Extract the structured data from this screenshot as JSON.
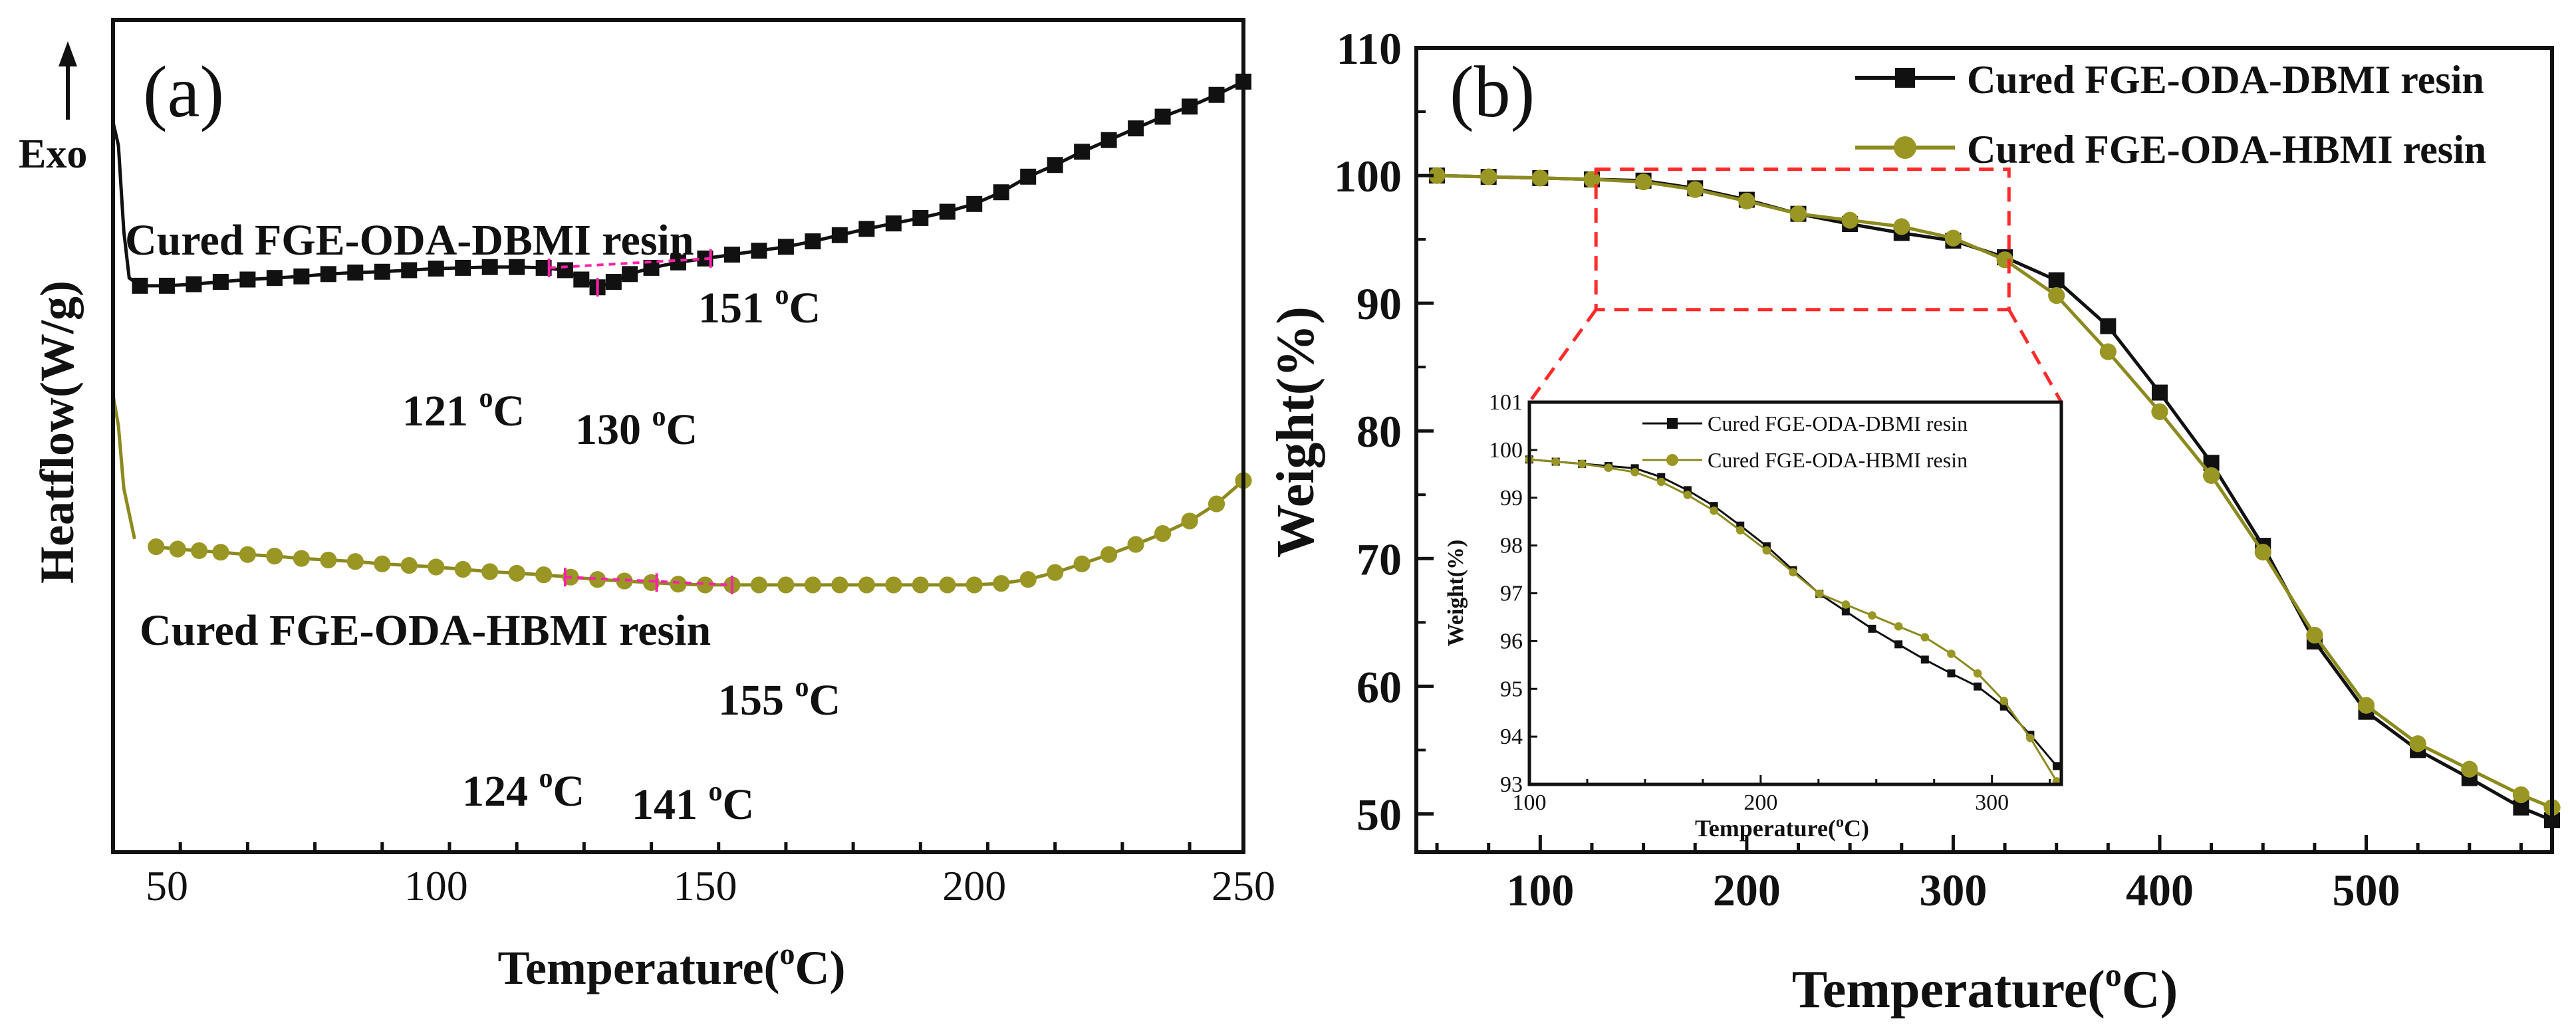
{
  "colors": {
    "black": "#111111",
    "olive": "#8c8a1e",
    "marker_olive": "#9a9624",
    "accent": "#ff2a2a",
    "annotation": "#ff22aa"
  },
  "chart_data": [
    {
      "id": "a",
      "type": "line",
      "panel_label": "(a)",
      "exo_label": "Exo",
      "xlabel": "Temperature(",
      "xlabel_sup": "o",
      "xlabel_end": "C)",
      "ylabel": "Heatflow(W/g)",
      "xlim": [
        40,
        250
      ],
      "ylim": [
        0,
        10
      ],
      "x_ticks": [
        50,
        100,
        150,
        200,
        250
      ],
      "show_y_ticks": false,
      "series": [
        {
          "name": "Cured FGE-ODA-DBMI resin",
          "color_key": "black",
          "marker": "square",
          "points": [
            [
              40,
              9.2
            ],
            [
              41,
              8.9
            ],
            [
              42,
              7.8
            ],
            [
              43,
              7.2
            ],
            [
              45,
              7.1
            ],
            [
              50,
              7.1
            ],
            [
              55,
              7.12
            ],
            [
              60,
              7.15
            ],
            [
              65,
              7.18
            ],
            [
              70,
              7.2
            ],
            [
              75,
              7.22
            ],
            [
              80,
              7.25
            ],
            [
              85,
              7.27
            ],
            [
              90,
              7.28
            ],
            [
              95,
              7.3
            ],
            [
              100,
              7.32
            ],
            [
              105,
              7.33
            ],
            [
              110,
              7.34
            ],
            [
              115,
              7.34
            ],
            [
              120,
              7.33
            ],
            [
              124,
              7.3
            ],
            [
              127,
              7.18
            ],
            [
              130,
              7.08
            ],
            [
              133,
              7.15
            ],
            [
              136,
              7.25
            ],
            [
              140,
              7.33
            ],
            [
              145,
              7.4
            ],
            [
              150,
              7.45
            ],
            [
              155,
              7.5
            ],
            [
              160,
              7.55
            ],
            [
              165,
              7.6
            ],
            [
              170,
              7.67
            ],
            [
              175,
              7.75
            ],
            [
              180,
              7.83
            ],
            [
              185,
              7.9
            ],
            [
              190,
              7.97
            ],
            [
              195,
              8.05
            ],
            [
              200,
              8.15
            ],
            [
              205,
              8.3
            ],
            [
              210,
              8.5
            ],
            [
              215,
              8.65
            ],
            [
              220,
              8.82
            ],
            [
              225,
              8.97
            ],
            [
              230,
              9.12
            ],
            [
              235,
              9.27
            ],
            [
              240,
              9.4
            ],
            [
              245,
              9.55
            ],
            [
              250,
              9.72
            ]
          ]
        },
        {
          "name": "Cured FGE-ODA-HBMI resin",
          "color_key": "olive",
          "marker": "circle",
          "points": [
            [
              40,
              5.7
            ],
            [
              41,
              5.3
            ],
            [
              42,
              4.5
            ],
            [
              44,
              3.85
            ],
            [
              48,
              3.75
            ],
            [
              52,
              3.72
            ],
            [
              56,
              3.7
            ],
            [
              60,
              3.68
            ],
            [
              65,
              3.65
            ],
            [
              70,
              3.63
            ],
            [
              75,
              3.6
            ],
            [
              80,
              3.58
            ],
            [
              85,
              3.56
            ],
            [
              90,
              3.53
            ],
            [
              95,
              3.51
            ],
            [
              100,
              3.49
            ],
            [
              105,
              3.46
            ],
            [
              110,
              3.43
            ],
            [
              115,
              3.41
            ],
            [
              120,
              3.39
            ],
            [
              125,
              3.36
            ],
            [
              130,
              3.33
            ],
            [
              135,
              3.31
            ],
            [
              140,
              3.29
            ],
            [
              145,
              3.27
            ],
            [
              150,
              3.26
            ],
            [
              155,
              3.26
            ],
            [
              160,
              3.26
            ],
            [
              165,
              3.26
            ],
            [
              170,
              3.26
            ],
            [
              175,
              3.26
            ],
            [
              180,
              3.26
            ],
            [
              185,
              3.26
            ],
            [
              190,
              3.26
            ],
            [
              195,
              3.26
            ],
            [
              200,
              3.26
            ],
            [
              205,
              3.28
            ],
            [
              210,
              3.33
            ],
            [
              215,
              3.42
            ],
            [
              220,
              3.53
            ],
            [
              225,
              3.65
            ],
            [
              230,
              3.78
            ],
            [
              235,
              3.92
            ],
            [
              240,
              4.08
            ],
            [
              245,
              4.3
            ],
            [
              250,
              4.6
            ]
          ]
        }
      ],
      "curve_labels": [
        {
          "text": "Cured FGE-ODA-DBMI resin"
        },
        {
          "text": "Cured FGE-ODA-HBMI resin"
        }
      ],
      "annotations": [
        {
          "text": "151",
          "sup": "o",
          "unit": "C",
          "x": 151,
          "y": 7.45
        },
        {
          "text": "121",
          "sup": "o",
          "unit": "C",
          "x": 121,
          "y": 7.33
        },
        {
          "text": "130",
          "sup": "o",
          "unit": "C",
          "x": 130,
          "y": 7.08
        },
        {
          "text": "155",
          "sup": "o",
          "unit": "C",
          "x": 155,
          "y": 3.26
        },
        {
          "text": "124",
          "sup": "o",
          "unit": "C",
          "x": 124,
          "y": 3.36
        },
        {
          "text": "141",
          "sup": "o",
          "unit": "C",
          "x": 141,
          "y": 3.29
        }
      ]
    },
    {
      "id": "b",
      "type": "line",
      "panel_label": "(b)",
      "xlabel": "Temperature(",
      "xlabel_sup": "o",
      "xlabel_end": "C)",
      "ylabel": "Weight(%)",
      "xlim": [
        40,
        590
      ],
      "ylim": [
        47,
        110
      ],
      "x_ticks": [
        100,
        200,
        300,
        400,
        500
      ],
      "y_ticks": [
        50,
        60,
        70,
        80,
        90,
        100,
        110
      ],
      "legend_position": "top-right",
      "series": [
        {
          "name": "Cured FGE-ODA-DBMI resin",
          "color_key": "black",
          "marker": "square",
          "points": [
            [
              50,
              100
            ],
            [
              75,
              99.9
            ],
            [
              100,
              99.8
            ],
            [
              125,
              99.7
            ],
            [
              150,
              99.6
            ],
            [
              175,
              99
            ],
            [
              200,
              98.1
            ],
            [
              225,
              97
            ],
            [
              250,
              96.2
            ],
            [
              275,
              95.5
            ],
            [
              300,
              94.9
            ],
            [
              325,
              93.6
            ],
            [
              350,
              91.8
            ],
            [
              375,
              88.2
            ],
            [
              400,
              83
            ],
            [
              425,
              77.5
            ],
            [
              450,
              71
            ],
            [
              475,
              63.5
            ],
            [
              500,
              58
            ],
            [
              525,
              55
            ],
            [
              550,
              52.8
            ],
            [
              575,
              50.5
            ],
            [
              590,
              49.5
            ]
          ]
        },
        {
          "name": "Cured FGE-ODA-HBMI resin",
          "color_key": "olive",
          "marker": "circle",
          "points": [
            [
              50,
              100
            ],
            [
              75,
              99.9
            ],
            [
              100,
              99.8
            ],
            [
              125,
              99.7
            ],
            [
              150,
              99.5
            ],
            [
              175,
              98.9
            ],
            [
              200,
              98
            ],
            [
              225,
              97
            ],
            [
              250,
              96.5
            ],
            [
              275,
              96
            ],
            [
              300,
              95.1
            ],
            [
              325,
              93.4
            ],
            [
              350,
              90.6
            ],
            [
              375,
              86.2
            ],
            [
              400,
              81.5
            ],
            [
              425,
              76.5
            ],
            [
              450,
              70.5
            ],
            [
              475,
              64
            ],
            [
              500,
              58.5
            ],
            [
              525,
              55.5
            ],
            [
              550,
              53.5
            ],
            [
              575,
              51.5
            ],
            [
              590,
              50.5
            ]
          ]
        }
      ],
      "highlight_box": {
        "x": [
          127,
          327
        ],
        "y": [
          89.5,
          100.5
        ]
      },
      "inset": {
        "xlabel": "Temperature(",
        "xlabel_sup": "o",
        "xlabel_end": "C)",
        "ylabel": "Weight(%)",
        "xlim": [
          100,
          330
        ],
        "ylim": [
          93,
          101
        ],
        "x_ticks": [
          100,
          200,
          300
        ],
        "y_ticks": [
          93,
          94,
          95,
          96,
          97,
          98,
          99,
          100,
          101
        ],
        "legend": [
          "Cured FGE-ODA-DBMI resin",
          "Cured FGE-ODA-HBMI resin"
        ]
      }
    }
  ]
}
